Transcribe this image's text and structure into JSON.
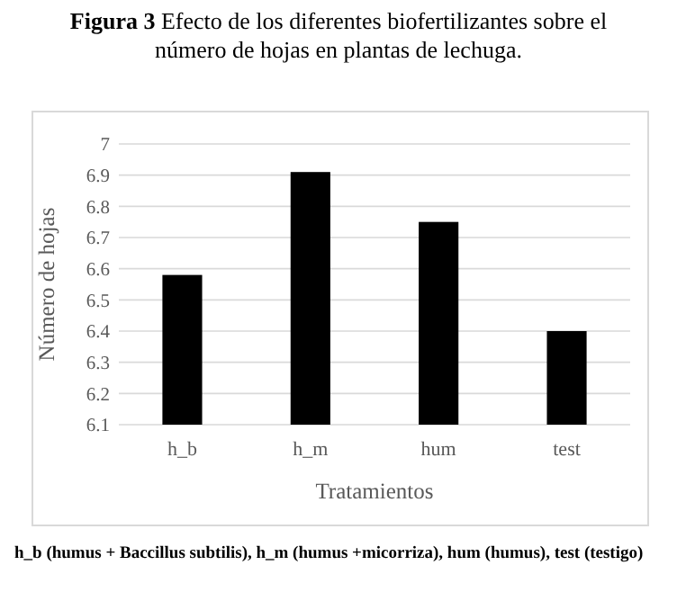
{
  "chart_data": {
    "type": "bar",
    "title": "Figura 3 Efecto de los diferentes biofertilizantes sobre el número de hojas en plantas de lechuga.",
    "categories": [
      "h_b",
      "h_m",
      "hum",
      "test"
    ],
    "values": [
      6.58,
      6.91,
      6.75,
      6.4
    ],
    "color": "#000000",
    "xlabel": "Tratamientos",
    "ylabel": "Número de hojas",
    "ylim": [
      6.1,
      7
    ],
    "yticks": [
      6.1,
      6.2,
      6.3,
      6.4,
      6.5,
      6.6,
      6.7,
      6.8,
      6.9,
      7
    ],
    "grid": "y",
    "annotations": [
      "h_b (humus + Baccillus subtilis), h_m (humus +micorriza), hum (humus), test (testigo)"
    ]
  }
}
